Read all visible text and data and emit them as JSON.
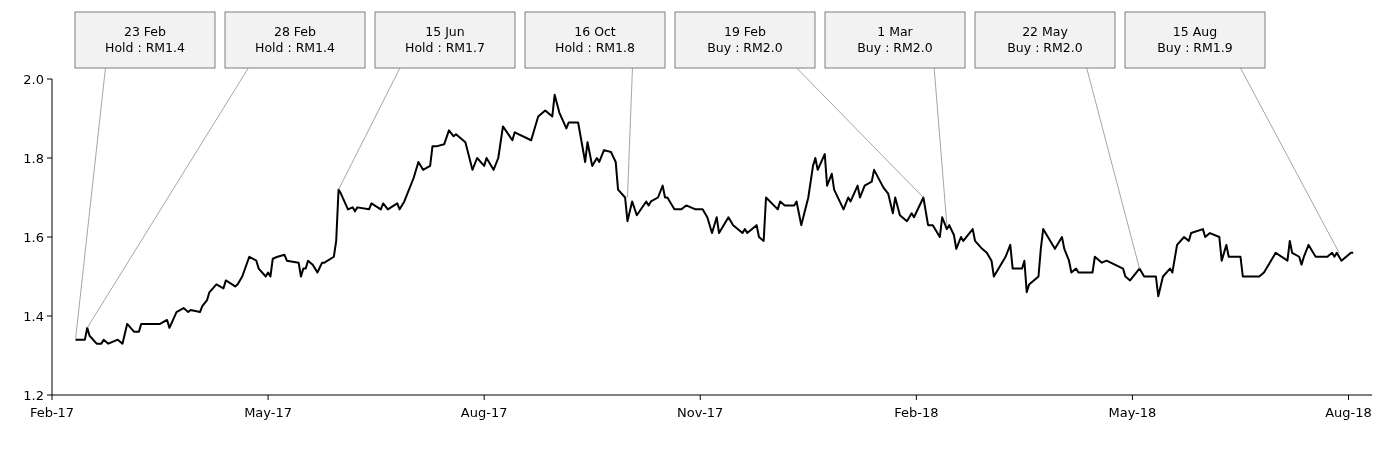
{
  "chart_data": {
    "type": "line",
    "grid": false,
    "marker": "none",
    "line_style": "solid",
    "xlim": [
      "2017-02-13",
      "2018-08-29"
    ],
    "xticks": [
      {
        "value": "2017-02-13",
        "label": "Feb-17"
      },
      {
        "value": "2017-05-16",
        "label": "May-17"
      },
      {
        "value": "2017-08-16",
        "label": "Aug-17"
      },
      {
        "value": "2017-11-16",
        "label": "Nov-17"
      },
      {
        "value": "2018-02-16",
        "label": "Feb-18"
      },
      {
        "value": "2018-05-19",
        "label": "May-18"
      },
      {
        "value": "2018-08-19",
        "label": "Aug-18"
      }
    ],
    "ylim": [
      1.2,
      2.0
    ],
    "yticks": [
      {
        "value": 1.2,
        "label": "1.2"
      },
      {
        "value": 1.4,
        "label": "1.4"
      },
      {
        "value": 1.6,
        "label": "1.6"
      },
      {
        "value": 1.8,
        "label": "1.8"
      },
      {
        "value": 2.0,
        "label": "2.0"
      }
    ],
    "annotations": [
      {
        "text": "23 Feb\nHold : RM1.4",
        "x": "2017-02-23",
        "y": 1.34
      },
      {
        "text": "28 Feb\nHold : RM1.4",
        "x": "2017-02-28",
        "y": 1.37
      },
      {
        "text": "15 Jun\nHold : RM1.7",
        "x": "2017-06-15",
        "y": 1.72
      },
      {
        "text": "16 Oct\nHold : RM1.8",
        "x": "2017-10-16",
        "y": 1.7
      },
      {
        "text": "19 Feb\nBuy : RM2.0",
        "x": "2018-02-19",
        "y": 1.7
      },
      {
        "text": "1 Mar\nBuy : RM2.0",
        "x": "2018-03-01",
        "y": 1.63
      },
      {
        "text": "22 May\nBuy : RM2.0",
        "x": "2018-05-22",
        "y": 1.52
      },
      {
        "text": "15 Aug\nBuy : RM1.9",
        "x": "2018-08-15",
        "y": 1.56
      }
    ],
    "series": [
      {
        "color": "#000000",
        "x": [
          "2017-02-23",
          "2017-02-27",
          "2017-02-28",
          "2017-03-01",
          "2017-03-04",
          "2017-03-06",
          "2017-03-07",
          "2017-03-09",
          "2017-03-13",
          "2017-03-15",
          "2017-03-17",
          "2017-03-20",
          "2017-03-22",
          "2017-03-23",
          "2017-03-31",
          "2017-04-03",
          "2017-04-04",
          "2017-04-07",
          "2017-04-10",
          "2017-04-12",
          "2017-04-13",
          "2017-04-17",
          "2017-04-18",
          "2017-04-20",
          "2017-04-21",
          "2017-04-24",
          "2017-04-27",
          "2017-04-28",
          "2017-05-02",
          "2017-05-03",
          "2017-05-05",
          "2017-05-08",
          "2017-05-11",
          "2017-05-12",
          "2017-05-15",
          "2017-05-16",
          "2017-05-17",
          "2017-05-18",
          "2017-05-20",
          "2017-05-23",
          "2017-05-24",
          "2017-05-29",
          "2017-05-30",
          "2017-05-31",
          "2017-06-01",
          "2017-06-02",
          "2017-06-04",
          "2017-06-06",
          "2017-06-08",
          "2017-06-09",
          "2017-06-13",
          "2017-06-14",
          "2017-06-15",
          "2017-06-16",
          "2017-06-19",
          "2017-06-21",
          "2017-06-22",
          "2017-06-23",
          "2017-06-28",
          "2017-06-29",
          "2017-07-03",
          "2017-07-04",
          "2017-07-06",
          "2017-07-10",
          "2017-07-11",
          "2017-07-13",
          "2017-07-17",
          "2017-07-19",
          "2017-07-21",
          "2017-07-24",
          "2017-07-25",
          "2017-07-27",
          "2017-07-30",
          "2017-08-01",
          "2017-08-03",
          "2017-08-04",
          "2017-08-08",
          "2017-08-11",
          "2017-08-13",
          "2017-08-16",
          "2017-08-17",
          "2017-08-20",
          "2017-08-22",
          "2017-08-24",
          "2017-08-28",
          "2017-08-29",
          "2017-09-05",
          "2017-09-08",
          "2017-09-11",
          "2017-09-14",
          "2017-09-15",
          "2017-09-17",
          "2017-09-20",
          "2017-09-21",
          "2017-09-25",
          "2017-09-28",
          "2017-09-29",
          "2017-10-01",
          "2017-10-03",
          "2017-10-04",
          "2017-10-06",
          "2017-10-09",
          "2017-10-11",
          "2017-10-12",
          "2017-10-15",
          "2017-10-16",
          "2017-10-18",
          "2017-10-20",
          "2017-10-24",
          "2017-10-25",
          "2017-10-26",
          "2017-10-29",
          "2017-10-31",
          "2017-11-01",
          "2017-11-02",
          "2017-11-05",
          "2017-11-08",
          "2017-11-10",
          "2017-11-14",
          "2017-11-17",
          "2017-11-19",
          "2017-11-21",
          "2017-11-23",
          "2017-11-24",
          "2017-11-28",
          "2017-11-30",
          "2017-12-04",
          "2017-12-05",
          "2017-12-06",
          "2017-12-10",
          "2017-12-11",
          "2017-12-13",
          "2017-12-14",
          "2017-12-19",
          "2017-12-20",
          "2017-12-22",
          "2017-12-26",
          "2017-12-27",
          "2017-12-29",
          "2018-01-01",
          "2018-01-03",
          "2018-01-04",
          "2018-01-05",
          "2018-01-08",
          "2018-01-09",
          "2018-01-11",
          "2018-01-12",
          "2018-01-16",
          "2018-01-18",
          "2018-01-19",
          "2018-01-22",
          "2018-01-23",
          "2018-01-25",
          "2018-01-28",
          "2018-01-29",
          "2018-02-02",
          "2018-02-04",
          "2018-02-06",
          "2018-02-07",
          "2018-02-09",
          "2018-02-12",
          "2018-02-14",
          "2018-02-15",
          "2018-02-19",
          "2018-02-21",
          "2018-02-23",
          "2018-02-26",
          "2018-02-27",
          "2018-03-01",
          "2018-03-02",
          "2018-03-04",
          "2018-03-05",
          "2018-03-07",
          "2018-03-08",
          "2018-03-12",
          "2018-03-13",
          "2018-03-16",
          "2018-03-18",
          "2018-03-20",
          "2018-03-21",
          "2018-03-26",
          "2018-03-28",
          "2018-03-29",
          "2018-04-02",
          "2018-04-03",
          "2018-04-04",
          "2018-04-05",
          "2018-04-09",
          "2018-04-10",
          "2018-04-11",
          "2018-04-16",
          "2018-04-19",
          "2018-04-20",
          "2018-04-22",
          "2018-04-23",
          "2018-04-25",
          "2018-04-26",
          "2018-05-02",
          "2018-05-03",
          "2018-05-06",
          "2018-05-08",
          "2018-05-15",
          "2018-05-16",
          "2018-05-18",
          "2018-05-22",
          "2018-05-24",
          "2018-05-29",
          "2018-05-30",
          "2018-06-01",
          "2018-06-04",
          "2018-06-05",
          "2018-06-07",
          "2018-06-10",
          "2018-06-12",
          "2018-06-13",
          "2018-06-18",
          "2018-06-19",
          "2018-06-21",
          "2018-06-25",
          "2018-06-26",
          "2018-06-28",
          "2018-06-29",
          "2018-07-04",
          "2018-07-05",
          "2018-07-12",
          "2018-07-14",
          "2018-07-17",
          "2018-07-19",
          "2018-07-24",
          "2018-07-25",
          "2018-07-26",
          "2018-07-29",
          "2018-07-30",
          "2018-07-31",
          "2018-08-02",
          "2018-08-05",
          "2018-08-10",
          "2018-08-12",
          "2018-08-13",
          "2018-08-14",
          "2018-08-16",
          "2018-08-20",
          "2018-08-21"
        ],
        "values": [
          1.34,
          1.34,
          1.37,
          1.35,
          1.33,
          1.33,
          1.34,
          1.33,
          1.34,
          1.33,
          1.38,
          1.36,
          1.36,
          1.38,
          1.38,
          1.39,
          1.37,
          1.41,
          1.42,
          1.41,
          1.415,
          1.41,
          1.425,
          1.44,
          1.46,
          1.48,
          1.47,
          1.49,
          1.475,
          1.48,
          1.5,
          1.55,
          1.54,
          1.52,
          1.5,
          1.51,
          1.5,
          1.545,
          1.55,
          1.555,
          1.54,
          1.535,
          1.5,
          1.52,
          1.52,
          1.54,
          1.53,
          1.51,
          1.535,
          1.535,
          1.55,
          1.59,
          1.72,
          1.71,
          1.67,
          1.675,
          1.665,
          1.675,
          1.67,
          1.685,
          1.67,
          1.685,
          1.67,
          1.685,
          1.67,
          1.69,
          1.75,
          1.79,
          1.77,
          1.78,
          1.83,
          1.83,
          1.835,
          1.87,
          1.855,
          1.86,
          1.84,
          1.77,
          1.8,
          1.78,
          1.8,
          1.77,
          1.8,
          1.88,
          1.845,
          1.865,
          1.845,
          1.905,
          1.92,
          1.905,
          1.96,
          1.915,
          1.875,
          1.89,
          1.89,
          1.79,
          1.84,
          1.78,
          1.8,
          1.79,
          1.82,
          1.815,
          1.79,
          1.72,
          1.7,
          1.64,
          1.69,
          1.655,
          1.69,
          1.68,
          1.69,
          1.7,
          1.73,
          1.7,
          1.7,
          1.67,
          1.67,
          1.68,
          1.67,
          1.67,
          1.65,
          1.61,
          1.65,
          1.61,
          1.65,
          1.63,
          1.61,
          1.62,
          1.61,
          1.63,
          1.6,
          1.59,
          1.7,
          1.67,
          1.69,
          1.68,
          1.68,
          1.69,
          1.63,
          1.7,
          1.78,
          1.8,
          1.77,
          1.81,
          1.73,
          1.76,
          1.72,
          1.67,
          1.7,
          1.69,
          1.73,
          1.7,
          1.73,
          1.74,
          1.77,
          1.725,
          1.71,
          1.66,
          1.7,
          1.655,
          1.64,
          1.66,
          1.65,
          1.7,
          1.63,
          1.63,
          1.6,
          1.65,
          1.62,
          1.63,
          1.605,
          1.57,
          1.6,
          1.59,
          1.62,
          1.59,
          1.57,
          1.56,
          1.54,
          1.5,
          1.55,
          1.58,
          1.52,
          1.52,
          1.54,
          1.46,
          1.48,
          1.5,
          1.57,
          1.62,
          1.57,
          1.6,
          1.57,
          1.54,
          1.51,
          1.52,
          1.51,
          1.51,
          1.55,
          1.535,
          1.54,
          1.52,
          1.5,
          1.49,
          1.52,
          1.5,
          1.5,
          1.45,
          1.5,
          1.52,
          1.51,
          1.58,
          1.6,
          1.59,
          1.61,
          1.62,
          1.6,
          1.61,
          1.6,
          1.54,
          1.58,
          1.55,
          1.55,
          1.5,
          1.5,
          1.51,
          1.54,
          1.56,
          1.54,
          1.59,
          1.56,
          1.55,
          1.53,
          1.55,
          1.58,
          1.55,
          1.55,
          1.56,
          1.55,
          1.56,
          1.54,
          1.56,
          1.56
        ]
      }
    ]
  }
}
